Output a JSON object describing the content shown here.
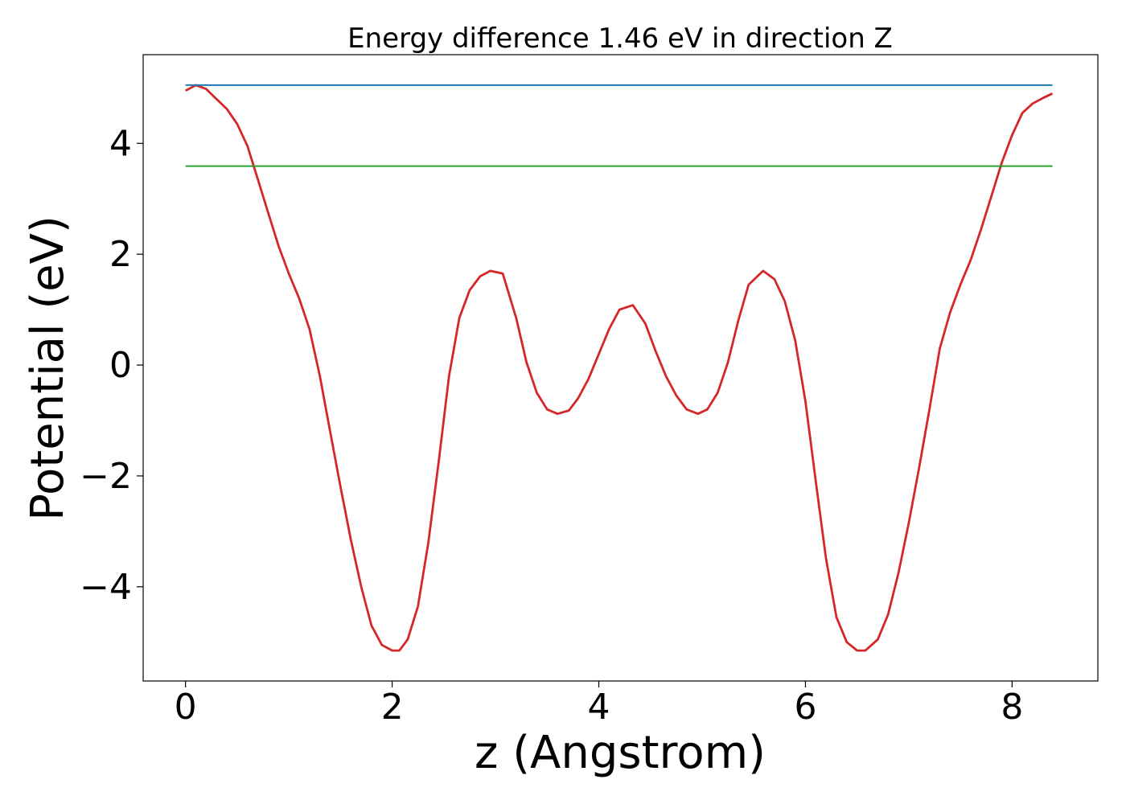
{
  "chart_data": {
    "type": "line",
    "title": "Energy difference 1.46 eV in direction Z",
    "xlabel": "z (Angstrom)",
    "ylabel": "Potential (eV)",
    "xlim": [
      -0.41,
      8.83
    ],
    "ylim": [
      -5.7,
      5.6
    ],
    "xticks": [
      0,
      2,
      4,
      6,
      8
    ],
    "xtick_labels": [
      "0",
      "2",
      "4",
      "6",
      "8"
    ],
    "yticks": [
      -4,
      -2,
      0,
      2,
      4
    ],
    "ytick_labels": [
      "−4",
      "−2",
      "0",
      "2",
      "4"
    ],
    "grid": false,
    "legend": "none",
    "series": [
      {
        "color": "#d62728",
        "x": [
          0,
          0.1,
          0.2,
          0.3,
          0.4,
          0.5,
          0.6,
          0.7,
          0.8,
          0.9,
          1.0,
          1.1,
          1.2,
          1.3,
          1.4,
          1.5,
          1.6,
          1.7,
          1.8,
          1.9,
          2.0,
          2.07,
          2.15,
          2.25,
          2.35,
          2.45,
          2.55,
          2.65,
          2.75,
          2.85,
          2.95,
          3.07,
          3.2,
          3.3,
          3.4,
          3.5,
          3.6,
          3.71,
          3.8,
          3.9,
          4.0,
          4.1,
          4.2,
          4.33,
          4.45,
          4.55,
          4.65,
          4.75,
          4.85,
          4.96,
          5.05,
          5.15,
          5.25,
          5.35,
          5.45,
          5.59,
          5.7,
          5.8,
          5.9,
          6.0,
          6.1,
          6.2,
          6.3,
          6.4,
          6.5,
          6.58,
          6.7,
          6.8,
          6.9,
          7.0,
          7.1,
          7.2,
          7.3,
          7.4,
          7.5,
          7.6,
          7.7,
          7.8,
          7.9,
          8.0,
          8.1,
          8.2,
          8.3,
          8.39
        ],
        "y": [
          4.95,
          5.05,
          4.98,
          4.8,
          4.62,
          4.35,
          3.95,
          3.35,
          2.75,
          2.15,
          1.65,
          1.2,
          0.65,
          -0.2,
          -1.2,
          -2.2,
          -3.15,
          -4.0,
          -4.7,
          -5.05,
          -5.15,
          -5.15,
          -4.95,
          -4.35,
          -3.2,
          -1.75,
          -0.2,
          0.85,
          1.35,
          1.6,
          1.7,
          1.65,
          0.85,
          0.05,
          -0.5,
          -0.8,
          -0.88,
          -0.82,
          -0.6,
          -0.25,
          0.2,
          0.65,
          1.0,
          1.08,
          0.75,
          0.25,
          -0.2,
          -0.55,
          -0.8,
          -0.88,
          -0.8,
          -0.5,
          0.05,
          0.8,
          1.45,
          1.7,
          1.55,
          1.15,
          0.45,
          -0.65,
          -2.1,
          -3.5,
          -4.55,
          -5.0,
          -5.15,
          -5.15,
          -4.95,
          -4.5,
          -3.75,
          -2.85,
          -1.85,
          -0.8,
          0.3,
          0.95,
          1.45,
          1.9,
          2.45,
          3.05,
          3.65,
          4.15,
          4.55,
          4.72,
          4.82,
          4.9
        ]
      },
      {
        "color": "#1f77b4",
        "x": [
          0,
          8.39
        ],
        "y": [
          5.05,
          5.05
        ]
      },
      {
        "color": "#2ca02c",
        "x": [
          0,
          8.39
        ],
        "y": [
          3.59,
          3.59
        ]
      }
    ]
  }
}
